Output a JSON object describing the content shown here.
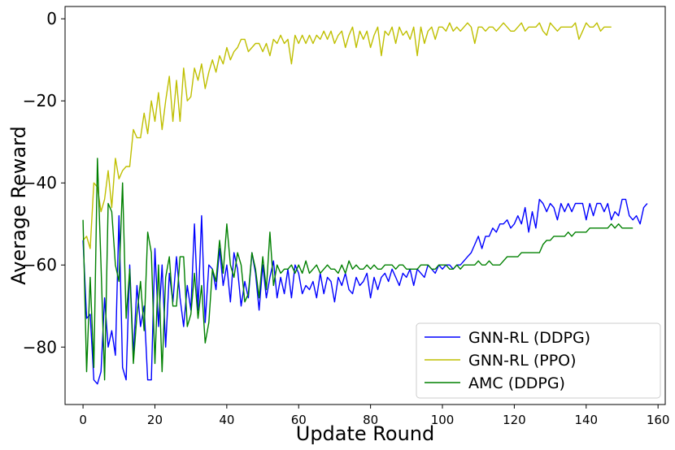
{
  "chart_data": {
    "type": "line",
    "title": "",
    "xlabel": "Update Round",
    "ylabel": "Average Reward",
    "xlim": [
      -5,
      162
    ],
    "ylim": [
      -94,
      3
    ],
    "xticks": [
      0,
      20,
      40,
      60,
      80,
      100,
      120,
      140,
      160
    ],
    "yticks": [
      0,
      -20,
      -40,
      -60,
      -80
    ],
    "xtick_labels": [
      "0",
      "20",
      "40",
      "60",
      "80",
      "100",
      "120",
      "140",
      "160"
    ],
    "ytick_labels": [
      "0",
      "−20",
      "−40",
      "−60",
      "−80"
    ],
    "grid": false,
    "legend_position": "lower-right",
    "series": [
      {
        "name": "GNN-RL (DDPG)",
        "color": "#0000ff",
        "x": [
          0,
          1,
          2,
          3,
          4,
          5,
          6,
          7,
          8,
          9,
          10,
          11,
          12,
          13,
          14,
          15,
          16,
          17,
          18,
          19,
          20,
          21,
          22,
          23,
          24,
          25,
          26,
          27,
          28,
          29,
          30,
          31,
          32,
          33,
          34,
          35,
          36,
          37,
          38,
          39,
          40,
          41,
          42,
          43,
          44,
          45,
          46,
          47,
          48,
          49,
          50,
          51,
          52,
          53,
          54,
          55,
          56,
          57,
          58,
          59,
          60,
          61,
          62,
          63,
          64,
          65,
          66,
          67,
          68,
          69,
          70,
          71,
          72,
          73,
          74,
          75,
          76,
          77,
          78,
          79,
          80,
          81,
          82,
          83,
          84,
          85,
          86,
          87,
          88,
          89,
          90,
          91,
          92,
          93,
          94,
          95,
          96,
          97,
          98,
          99,
          100,
          101,
          102,
          103,
          104,
          105,
          106,
          107,
          108,
          109,
          110,
          111,
          112,
          113,
          114,
          115,
          116,
          117,
          118,
          119,
          120,
          121,
          122,
          123,
          124,
          125,
          126,
          127,
          128,
          129,
          130,
          131,
          132,
          133,
          134,
          135,
          136,
          137,
          138,
          139,
          140,
          141,
          142,
          143,
          144,
          145,
          146,
          147,
          148,
          149,
          150,
          151,
          152,
          153,
          154,
          155,
          156,
          157
        ],
        "y": [
          -54,
          -73,
          -72,
          -88,
          -89,
          -86,
          -68,
          -80,
          -76,
          -82,
          -48,
          -85,
          -88,
          -60,
          -82,
          -65,
          -75,
          -70,
          -88,
          -88,
          -56,
          -75,
          -60,
          -80,
          -62,
          -69,
          -58,
          -68,
          -75,
          -65,
          -71,
          -50,
          -71,
          -48,
          -74,
          -60,
          -61,
          -66,
          -56,
          -65,
          -60,
          -69,
          -57,
          -61,
          -70,
          -64,
          -68,
          -57,
          -62,
          -71,
          -60,
          -68,
          -63,
          -59,
          -68,
          -63,
          -67,
          -61,
          -68,
          -60,
          -62,
          -67,
          -65,
          -66,
          -64,
          -68,
          -62,
          -67,
          -63,
          -64,
          -69,
          -63,
          -65,
          -62,
          -66,
          -67,
          -63,
          -65,
          -64,
          -62,
          -68,
          -63,
          -66,
          -63,
          -62,
          -64,
          -61,
          -63,
          -65,
          -62,
          -63,
          -61,
          -65,
          -61,
          -62,
          -63,
          -60,
          -61,
          -62,
          -60,
          -61,
          -60,
          -60,
          -61,
          -60,
          -60,
          -59,
          -58,
          -57,
          -55,
          -53,
          -56,
          -53,
          -53,
          -51,
          -52,
          -50,
          -50,
          -49,
          -51,
          -50,
          -48,
          -50,
          -46,
          -52,
          -47,
          -51,
          -44,
          -45,
          -47,
          -45,
          -46,
          -49,
          -45,
          -47,
          -45,
          -47,
          -45,
          -45,
          -45,
          -49,
          -45,
          -48,
          -45,
          -45,
          -47,
          -45,
          -49,
          -47,
          -48,
          -44,
          -44,
          -48,
          -49,
          -48,
          -50,
          -46,
          -45
        ]
      },
      {
        "name": "GNN-RL (PPO)",
        "color": "#bfbf00",
        "x": [
          0,
          1,
          2,
          3,
          4,
          5,
          6,
          7,
          8,
          9,
          10,
          11,
          12,
          13,
          14,
          15,
          16,
          17,
          18,
          19,
          20,
          21,
          22,
          23,
          24,
          25,
          26,
          27,
          28,
          29,
          30,
          31,
          32,
          33,
          34,
          35,
          36,
          37,
          38,
          39,
          40,
          41,
          42,
          43,
          44,
          45,
          46,
          47,
          48,
          49,
          50,
          51,
          52,
          53,
          54,
          55,
          56,
          57,
          58,
          59,
          60,
          61,
          62,
          63,
          64,
          65,
          66,
          67,
          68,
          69,
          70,
          71,
          72,
          73,
          74,
          75,
          76,
          77,
          78,
          79,
          80,
          81,
          82,
          83,
          84,
          85,
          86,
          87,
          88,
          89,
          90,
          91,
          92,
          93,
          94,
          95,
          96,
          97,
          98,
          99,
          100,
          101,
          102,
          103,
          104,
          105,
          106,
          107,
          108,
          109,
          110,
          111,
          112,
          113,
          114,
          115,
          116,
          117,
          118,
          119,
          120,
          121,
          122,
          123,
          124,
          125,
          126,
          127,
          128,
          129,
          130,
          131,
          132,
          133,
          134,
          135,
          136,
          137,
          138,
          139,
          140,
          141,
          142,
          143,
          144,
          145,
          146,
          147
        ],
        "y": [
          -54,
          -53,
          -56,
          -40,
          -41,
          -47,
          -44,
          -37,
          -46,
          -34,
          -39,
          -37,
          -36,
          -36,
          -27,
          -29,
          -29,
          -23,
          -28,
          -20,
          -25,
          -18,
          -27,
          -20,
          -14,
          -25,
          -15,
          -25,
          -12,
          -20,
          -19,
          -12,
          -15,
          -11,
          -17,
          -13,
          -10,
          -13,
          -9,
          -11,
          -7,
          -10,
          -8,
          -7,
          -5,
          -5,
          -8,
          -7,
          -6,
          -6,
          -8,
          -6,
          -9,
          -5,
          -6,
          -4,
          -6,
          -5,
          -11,
          -4,
          -6,
          -4,
          -6,
          -4,
          -6,
          -4,
          -5,
          -3,
          -5,
          -3,
          -6,
          -4,
          -3,
          -7,
          -4,
          -2,
          -7,
          -3,
          -5,
          -3,
          -7,
          -4,
          -2,
          -9,
          -3,
          -4,
          -2,
          -6,
          -2,
          -4,
          -3,
          -5,
          -2,
          -9,
          -2,
          -6,
          -3,
          -2,
          -5,
          -2,
          -2,
          -3,
          -1,
          -3,
          -2,
          -3,
          -2,
          -1,
          -2,
          -6,
          -2,
          -2,
          -3,
          -2,
          -2,
          -3,
          -2,
          -1,
          -2,
          -3,
          -3,
          -2,
          -1,
          -3,
          -2,
          -2,
          -2,
          -1,
          -3,
          -4,
          -1,
          -2,
          -3,
          -2,
          -2,
          -2,
          -2,
          -1,
          -5,
          -3,
          -1,
          -2,
          -2,
          -1,
          -3,
          -2,
          -2,
          -2
        ]
      },
      {
        "name": "AMC (DDPG)",
        "color": "#008000",
        "x": [
          0,
          1,
          2,
          3,
          4,
          5,
          6,
          7,
          8,
          9,
          10,
          11,
          12,
          13,
          14,
          15,
          16,
          17,
          18,
          19,
          20,
          21,
          22,
          23,
          24,
          25,
          26,
          27,
          28,
          29,
          30,
          31,
          32,
          33,
          34,
          35,
          36,
          37,
          38,
          39,
          40,
          41,
          42,
          43,
          44,
          45,
          46,
          47,
          48,
          49,
          50,
          51,
          52,
          53,
          54,
          55,
          56,
          57,
          58,
          59,
          60,
          61,
          62,
          63,
          64,
          65,
          66,
          67,
          68,
          69,
          70,
          71,
          72,
          73,
          74,
          75,
          76,
          77,
          78,
          79,
          80,
          81,
          82,
          83,
          84,
          85,
          86,
          87,
          88,
          89,
          90,
          91,
          92,
          93,
          94,
          95,
          96,
          97,
          98,
          99,
          100,
          101,
          102,
          103,
          104,
          105,
          106,
          107,
          108,
          109,
          110,
          111,
          112,
          113,
          114,
          115,
          116,
          117,
          118,
          119,
          120,
          121,
          122,
          123,
          124,
          125,
          126,
          127,
          128,
          129,
          130,
          131,
          132,
          133,
          134,
          135,
          136,
          137,
          138,
          139,
          140,
          141,
          142,
          143,
          144,
          145,
          146,
          147,
          148,
          149,
          150,
          151,
          152,
          153
        ],
        "y": [
          -49,
          -86,
          -63,
          -85,
          -34,
          -60,
          -88,
          -45,
          -47,
          -60,
          -64,
          -40,
          -73,
          -61,
          -84,
          -72,
          -64,
          -76,
          -52,
          -57,
          -84,
          -60,
          -86,
          -63,
          -58,
          -70,
          -70,
          -58,
          -58,
          -75,
          -72,
          -62,
          -73,
          -65,
          -79,
          -74,
          -61,
          -64,
          -54,
          -62,
          -50,
          -60,
          -63,
          -57,
          -60,
          -69,
          -67,
          -57,
          -61,
          -68,
          -58,
          -66,
          -52,
          -65,
          -60,
          -62,
          -61,
          -61,
          -60,
          -62,
          -60,
          -62,
          -59,
          -62,
          -61,
          -60,
          -62,
          -61,
          -60,
          -61,
          -61,
          -62,
          -60,
          -62,
          -59,
          -61,
          -60,
          -61,
          -61,
          -60,
          -61,
          -60,
          -61,
          -61,
          -60,
          -60,
          -60,
          -61,
          -60,
          -60,
          -61,
          -61,
          -61,
          -61,
          -60,
          -60,
          -60,
          -61,
          -61,
          -60,
          -60,
          -60,
          -61,
          -61,
          -60,
          -61,
          -60,
          -60,
          -60,
          -60,
          -59,
          -60,
          -60,
          -59,
          -60,
          -60,
          -60,
          -59,
          -58,
          -58,
          -58,
          -58,
          -57,
          -57,
          -57,
          -57,
          -57,
          -57,
          -55,
          -54,
          -54,
          -53,
          -53,
          -53,
          -53,
          -52,
          -53,
          -52,
          -52,
          -52,
          -52,
          -51,
          -51,
          -51,
          -51,
          -51,
          -51,
          -50,
          -51,
          -50,
          -51,
          -51,
          -51,
          -51
        ]
      }
    ]
  }
}
